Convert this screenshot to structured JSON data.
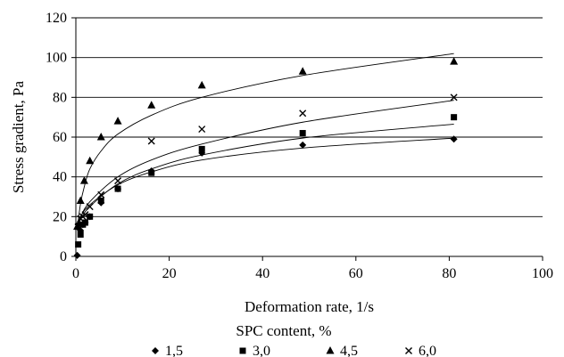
{
  "chart_data": {
    "type": "scatter",
    "title": "",
    "xlabel": "Deformation rate, 1/s",
    "ylabel": "Stress gradient,  Pa",
    "xlim": [
      0,
      100
    ],
    "ylim": [
      0,
      120
    ],
    "xticks": [
      0,
      20,
      40,
      60,
      80,
      100
    ],
    "yticks": [
      0,
      20,
      40,
      60,
      80,
      100,
      120
    ],
    "xtick_labels": [
      "0",
      "20",
      "40",
      "60",
      "80",
      "100"
    ],
    "ytick_labels": [
      "0",
      "20",
      "40",
      "60",
      "80",
      "100",
      "120"
    ],
    "grid": "horizontal",
    "legend": {
      "title": "SPC content, %",
      "placement": "bottom"
    },
    "series": [
      {
        "name": "1,5",
        "marker": "diamond",
        "x": [
          0.3,
          0.5,
          1.0,
          1.5,
          2.0,
          3.0,
          5.4,
          9.0,
          16.2,
          27.0,
          48.6,
          81.0
        ],
        "y": [
          0.5,
          16,
          13,
          16,
          17,
          20,
          27,
          34,
          43,
          52,
          56,
          59
        ],
        "trend": [
          [
            0.3,
            16
          ],
          [
            1,
            20
          ],
          [
            3,
            26
          ],
          [
            9,
            36
          ],
          [
            16.2,
            42.5
          ],
          [
            27,
            48.5
          ],
          [
            48.6,
            54.5
          ],
          [
            81,
            59.5
          ]
        ]
      },
      {
        "name": "3,0",
        "marker": "square",
        "x": [
          0.5,
          1.0,
          1.5,
          2.0,
          3.0,
          5.4,
          9.0,
          16.2,
          27.0,
          48.6,
          81.0
        ],
        "y": [
          6,
          11,
          16,
          17,
          20,
          28,
          34,
          42,
          54,
          62,
          70
        ],
        "trend": [
          [
            0.3,
            13
          ],
          [
            1,
            18.5
          ],
          [
            3,
            25
          ],
          [
            9,
            36.5
          ],
          [
            16.2,
            44
          ],
          [
            27,
            51
          ],
          [
            48.6,
            59.5
          ],
          [
            81,
            66.5
          ]
        ]
      },
      {
        "name": "4,5",
        "marker": "triangle",
        "x": [
          0.3,
          1.0,
          1.8,
          3.0,
          5.4,
          9.0,
          16.2,
          27.0,
          48.6,
          81.0
        ],
        "y": [
          15,
          28,
          38,
          48,
          60,
          68,
          76,
          86,
          93,
          98
        ],
        "trend": [
          [
            0.3,
            14
          ],
          [
            1,
            26.5
          ],
          [
            1.8,
            35
          ],
          [
            3,
            44
          ],
          [
            5.4,
            53
          ],
          [
            9,
            61.5
          ],
          [
            16.2,
            71
          ],
          [
            27,
            80
          ],
          [
            48.6,
            91
          ],
          [
            81,
            102
          ]
        ]
      },
      {
        "name": "6,0",
        "marker": "cross",
        "x": [
          0.5,
          1.0,
          1.5,
          2.0,
          3.0,
          5.4,
          9.0,
          16.2,
          27.0,
          48.6,
          81.0
        ],
        "y": [
          15,
          19,
          20,
          21,
          25,
          31,
          38,
          58,
          64,
          72,
          80
        ],
        "trend": [
          [
            0.3,
            14.5
          ],
          [
            1,
            19.5
          ],
          [
            3,
            27.5
          ],
          [
            9,
            40
          ],
          [
            16.2,
            48.5
          ],
          [
            27,
            56.5
          ],
          [
            48.6,
            67.5
          ],
          [
            81,
            78.5
          ]
        ]
      }
    ]
  }
}
